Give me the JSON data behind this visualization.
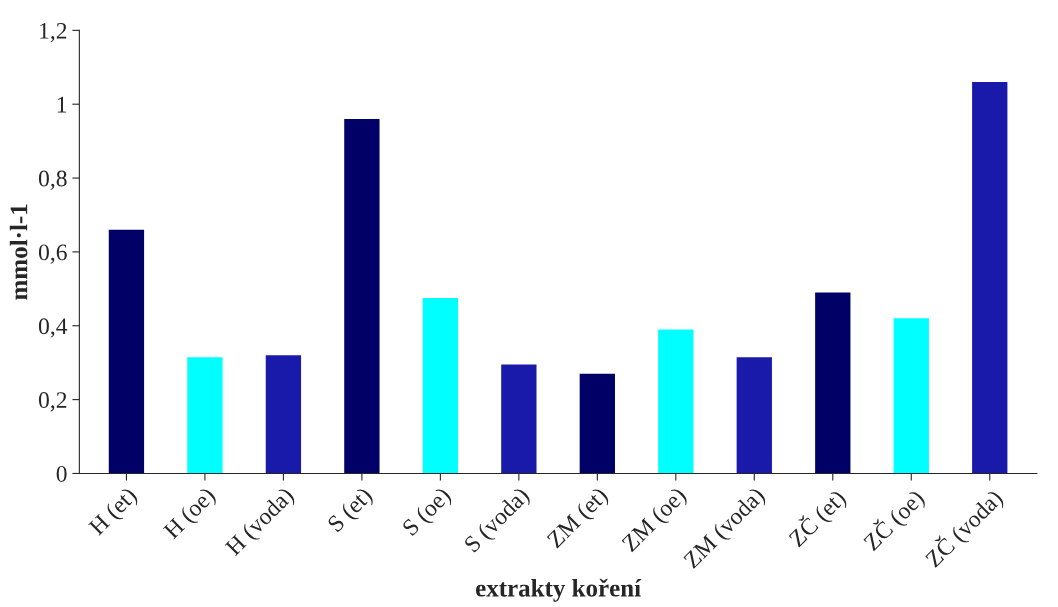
{
  "chart_data": {
    "type": "bar",
    "xlabel": "extrakty koření",
    "ylabel": "mmol·l-1",
    "categories": [
      "H (et)",
      "H (oe)",
      "H (voda)",
      "S (et)",
      "S (oe)",
      "S (voda)",
      "ZM (et)",
      "ZM (oe)",
      "ZM (voda)",
      "ZČ (et)",
      "ZČ (oe)",
      "ZČ (voda)"
    ],
    "values": [
      0.66,
      0.315,
      0.32,
      0.96,
      0.475,
      0.295,
      0.27,
      0.39,
      0.315,
      0.49,
      0.42,
      1.06
    ],
    "colors": [
      "#000066",
      "#00ffff",
      "#1a1aaa",
      "#000066",
      "#00ffff",
      "#1a1aaa",
      "#000066",
      "#00ffff",
      "#1a1aaa",
      "#000066",
      "#00ffff",
      "#1a1aaa"
    ],
    "ylim": [
      0,
      1.2
    ],
    "yticks": [
      0,
      {
        "value": 0.2,
        "label": "0,2"
      },
      {
        "value": 0.4,
        "label": "0,4"
      },
      {
        "value": 0.6,
        "label": "0,6"
      },
      {
        "value": 0.8,
        "label": "0,8"
      },
      1,
      {
        "value": 1.2,
        "label": "1,2"
      }
    ],
    "grid": false,
    "legend": false
  }
}
